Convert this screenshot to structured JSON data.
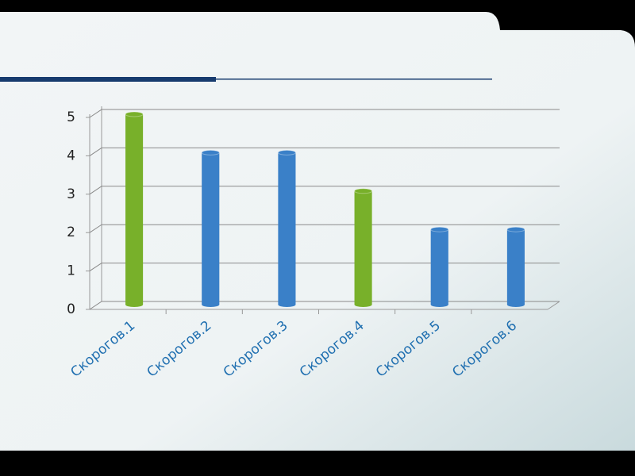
{
  "chart_data": {
    "type": "bar",
    "categories": [
      "Скорогов.1",
      "Скорогов.2",
      "Скорогов.3",
      "Скорогов.4",
      "Скорогов.5",
      "Скорогов.6"
    ],
    "values": [
      5,
      4,
      4,
      3,
      2,
      2
    ],
    "colors": [
      "#78b02a",
      "#3a80c8",
      "#3a80c8",
      "#78b02a",
      "#3a80c8",
      "#3a80c8"
    ],
    "ylim": [
      0,
      5
    ],
    "yticks": [
      0,
      1,
      2,
      3,
      4,
      5
    ],
    "grid": true
  }
}
